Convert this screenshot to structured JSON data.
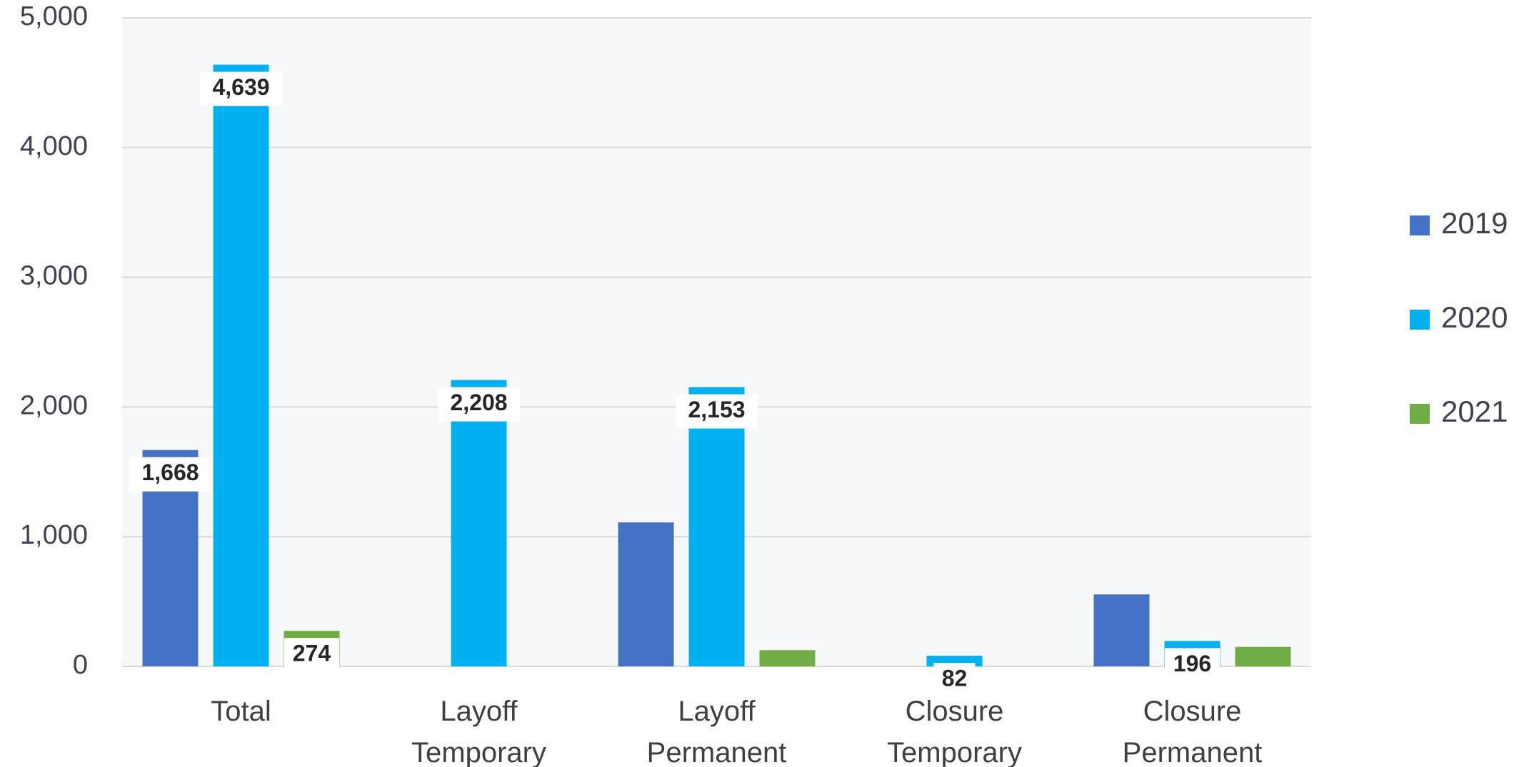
{
  "chart_data": {
    "type": "bar",
    "categories": [
      "Total",
      "Layoff Temporary",
      "Layoff Permanent",
      "Closure Temporary",
      "Closure Permanent"
    ],
    "series": [
      {
        "name": "2019",
        "color": "#4472c4",
        "values": [
          1668,
          null,
          1110,
          null,
          555
        ],
        "value_labels": [
          "1,668",
          null,
          null,
          null,
          null
        ]
      },
      {
        "name": "2020",
        "color": "#00b0f0",
        "values": [
          4639,
          2208,
          2153,
          82,
          196
        ],
        "value_labels": [
          "4,639",
          "2,208",
          "2,153",
          "82",
          "196"
        ]
      },
      {
        "name": "2021",
        "color": "#70ad47",
        "values": [
          274,
          null,
          125,
          null,
          150
        ],
        "value_labels": [
          "274",
          null,
          null,
          null,
          null
        ]
      }
    ],
    "ylim": [
      0,
      5000
    ],
    "yticks": [
      0,
      {
        "value": 1000,
        "label": "1,000"
      },
      {
        "value": 2000,
        "label": "2,000"
      },
      {
        "value": 3000,
        "label": "3,000"
      },
      {
        "value": 4000,
        "label": "4,000"
      },
      {
        "value": 5000,
        "label": "5,000"
      }
    ],
    "grid": true,
    "legend": "right"
  }
}
